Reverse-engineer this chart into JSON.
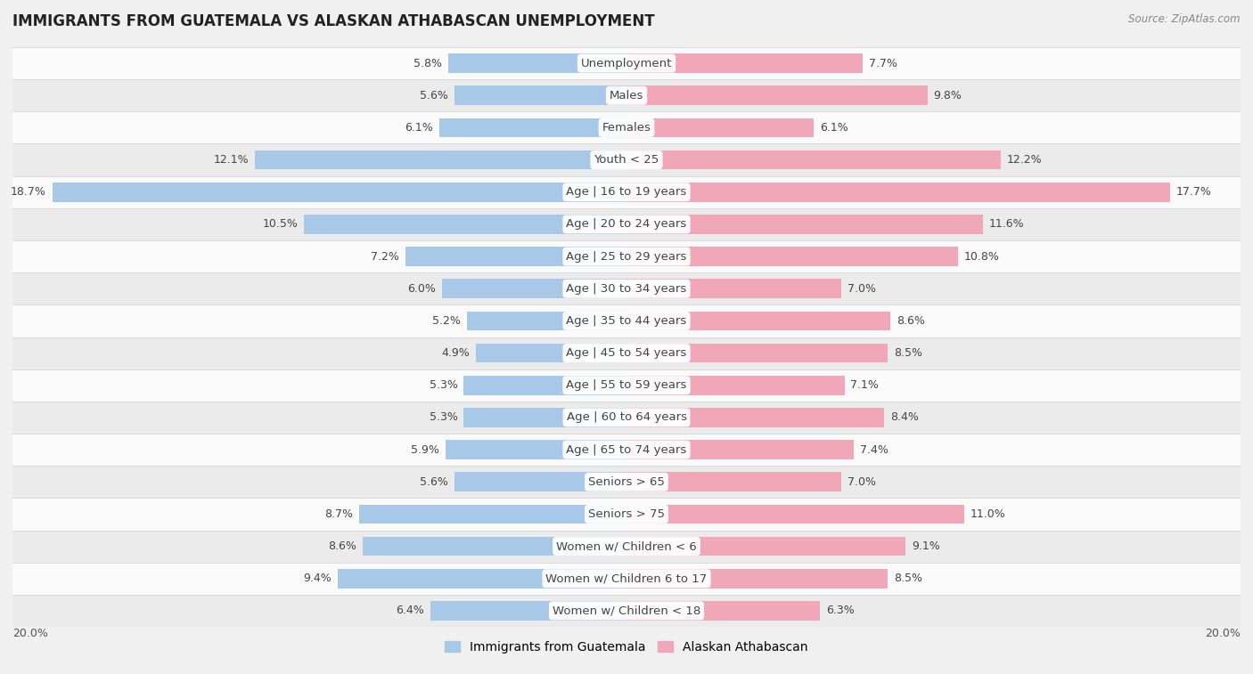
{
  "title": "IMMIGRANTS FROM GUATEMALA VS ALASKAN ATHABASCAN UNEMPLOYMENT",
  "source": "Source: ZipAtlas.com",
  "categories": [
    "Unemployment",
    "Males",
    "Females",
    "Youth < 25",
    "Age | 16 to 19 years",
    "Age | 20 to 24 years",
    "Age | 25 to 29 years",
    "Age | 30 to 34 years",
    "Age | 35 to 44 years",
    "Age | 45 to 54 years",
    "Age | 55 to 59 years",
    "Age | 60 to 64 years",
    "Age | 65 to 74 years",
    "Seniors > 65",
    "Seniors > 75",
    "Women w/ Children < 6",
    "Women w/ Children 6 to 17",
    "Women w/ Children < 18"
  ],
  "left_values": [
    5.8,
    5.6,
    6.1,
    12.1,
    18.7,
    10.5,
    7.2,
    6.0,
    5.2,
    4.9,
    5.3,
    5.3,
    5.9,
    5.6,
    8.7,
    8.6,
    9.4,
    6.4
  ],
  "right_values": [
    7.7,
    9.8,
    6.1,
    12.2,
    17.7,
    11.6,
    10.8,
    7.0,
    8.6,
    8.5,
    7.1,
    8.4,
    7.4,
    7.0,
    11.0,
    9.1,
    8.5,
    6.3
  ],
  "left_color": "#a8c8e8",
  "right_color": "#f0a8b8",
  "background_color": "#f0f0f0",
  "row_colors": [
    "#fafafa",
    "#ebebeb"
  ],
  "separator_color": "#d0d0d0",
  "xlim": 20.0,
  "legend_left": "Immigrants from Guatemala",
  "legend_right": "Alaskan Athabascan",
  "title_fontsize": 12,
  "label_fontsize": 9.5,
  "value_fontsize": 9.0,
  "source_fontsize": 8.5,
  "legend_fontsize": 10
}
